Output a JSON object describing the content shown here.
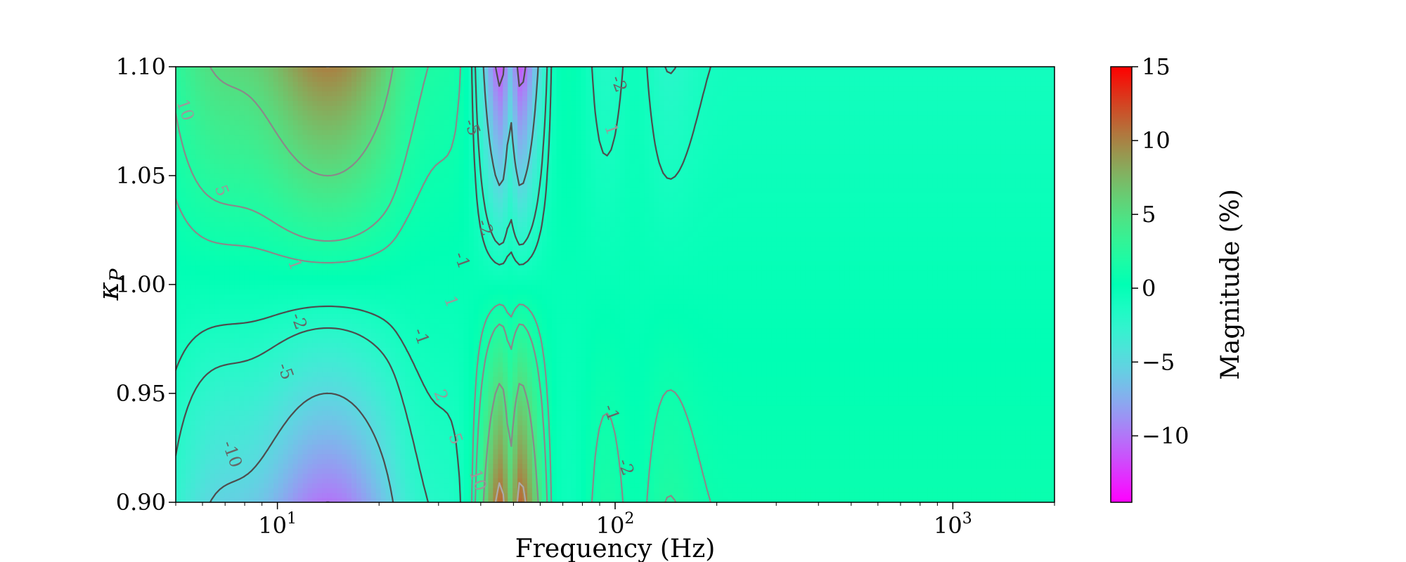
{
  "chart_data": {
    "type": "heatmap",
    "xlabel": "Frequency (Hz)",
    "ylabel": "κ",
    "ylabel_sub": "P",
    "colorbar_label": "Magnitude (%)",
    "x_scale": "log",
    "xlim": [
      5,
      2000
    ],
    "ylim": [
      0.9,
      1.1
    ],
    "clim": [
      -14.5,
      15
    ],
    "colormap": "rainbow",
    "x_ticks": [
      {
        "value": 10,
        "base": "10",
        "exp": "1"
      },
      {
        "value": 100,
        "base": "10",
        "exp": "2"
      },
      {
        "value": 1000,
        "base": "10",
        "exp": "3"
      }
    ],
    "y_ticks": [
      "0.90",
      "0.95",
      "1.00",
      "1.05",
      "1.10"
    ],
    "colorbar_ticks": [
      "15",
      "10",
      "5",
      "0",
      "−5",
      "−10"
    ],
    "colorbar_tick_values": [
      15,
      10,
      5,
      0,
      -5,
      -10
    ],
    "contour_levels": [
      -10,
      -5,
      -2,
      -1,
      1,
      2,
      5,
      10
    ],
    "contour_labels": [
      {
        "text": "10",
        "x": 5.3,
        "y": 1.08
      },
      {
        "text": "5",
        "x": 6.8,
        "y": 1.043
      },
      {
        "text": "1",
        "x": 11.2,
        "y": 1.009
      },
      {
        "text": "-5",
        "x": 37.5,
        "y": 1.072
      },
      {
        "text": "-2",
        "x": 41.0,
        "y": 1.026
      },
      {
        "text": "-1",
        "x": 35.0,
        "y": 1.011
      },
      {
        "text": "-2",
        "x": 102,
        "y": 1.092
      },
      {
        "text": "1",
        "x": 97,
        "y": 1.071
      },
      {
        "text": "-2",
        "x": 11.5,
        "y": 0.983
      },
      {
        "text": "-5",
        "x": 10.5,
        "y": 0.96
      },
      {
        "text": "-10",
        "x": 7.3,
        "y": 0.922
      },
      {
        "text": "-1",
        "x": 26.5,
        "y": 0.976
      },
      {
        "text": "1",
        "x": 32.5,
        "y": 0.992
      },
      {
        "text": "2",
        "x": 30.3,
        "y": 0.949
      },
      {
        "text": "5",
        "x": 33.5,
        "y": 0.929
      },
      {
        "text": "10",
        "x": 39.0,
        "y": 0.91
      },
      {
        "text": "-1",
        "x": 97,
        "y": 0.941
      },
      {
        "text": "-2",
        "x": 107,
        "y": 0.916
      }
    ],
    "colors": {
      "lines_low": "#4d4d4d",
      "lines_high": "#aaaaaa",
      "background": "#ffffff"
    }
  }
}
